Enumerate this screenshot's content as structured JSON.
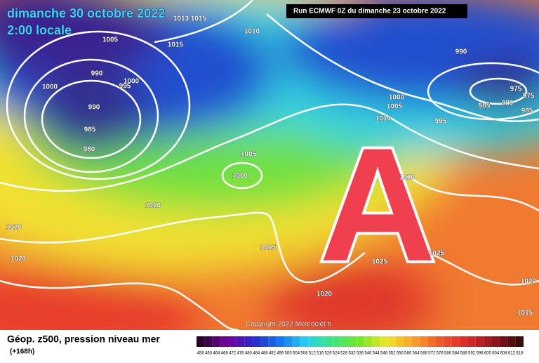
{
  "header": {
    "date": "dimanche 30 octobre 2022",
    "time": "2:00 locale",
    "run": "Run ECMWF 0Z du dimanche 23 octobre 2022"
  },
  "map": {
    "high_marker": "A",
    "isobar_labels": [
      "1013",
      "1015",
      "1010",
      "1005",
      "1015",
      "990",
      "990",
      "1000",
      "1000",
      "995",
      "975",
      "975",
      "980",
      "985",
      "985",
      "1000",
      "1005",
      "990",
      "1010",
      "995",
      "985",
      "980",
      "1005",
      "1000",
      "1020",
      "1010",
      "1020",
      "1015",
      "1025",
      "1020",
      "1025",
      "1020",
      "1020",
      "1015"
    ],
    "copyright": "Copyright 2022 Meteociel.fr"
  },
  "footer": {
    "title": "Géop. z500, pression niveau mer",
    "lead": "(+168h)",
    "scale": [
      "456",
      "460",
      "464",
      "468",
      "472",
      "476",
      "480",
      "484",
      "488",
      "492",
      "496",
      "500",
      "504",
      "508",
      "512",
      "516",
      "520",
      "524",
      "528",
      "532",
      "536",
      "540",
      "544",
      "548",
      "552",
      "556",
      "560",
      "564",
      "568",
      "572",
      "576",
      "580",
      "584",
      "588",
      "592",
      "596",
      "600",
      "604",
      "608",
      "612",
      "616"
    ]
  }
}
